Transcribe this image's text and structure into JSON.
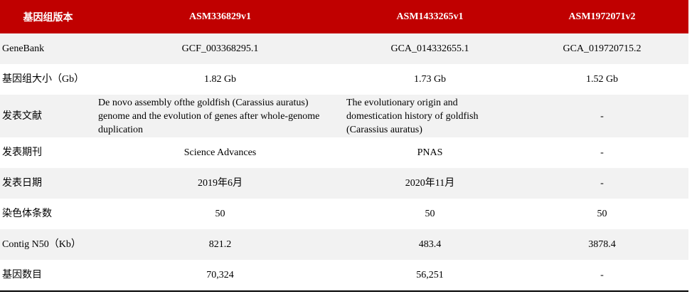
{
  "table": {
    "header": [
      "基因组版本",
      "ASM336829v1",
      "ASM1433265v1",
      "ASM1972071v2"
    ],
    "rows": [
      [
        "GeneBank",
        "GCF_003368295.1",
        "GCA_014332655.1",
        "GCA_019720715.2"
      ],
      [
        "基因组大小（Gb）",
        "1.82 Gb",
        "1.73 Gb",
        "1.52 Gb"
      ],
      [
        "发表文献",
        "De novo assembly ofthe goldfish (Carassius auratus) genome and the evolution of genes after whole-genome duplication",
        "The evolutionary origin and domestication history of goldfish (Carassius auratus)",
        "-"
      ],
      [
        "发表期刊",
        "Science Advances",
        "PNAS",
        "-"
      ],
      [
        "发表日期",
        "2019年6月",
        "2020年11月",
        "-"
      ],
      [
        "染色体条数",
        "50",
        "50",
        "50"
      ],
      [
        "Contig N50（Kb）",
        "821.2",
        "483.4",
        "3878.4"
      ],
      [
        "基因数目",
        "70,324",
        "56,251",
        "-"
      ]
    ]
  }
}
